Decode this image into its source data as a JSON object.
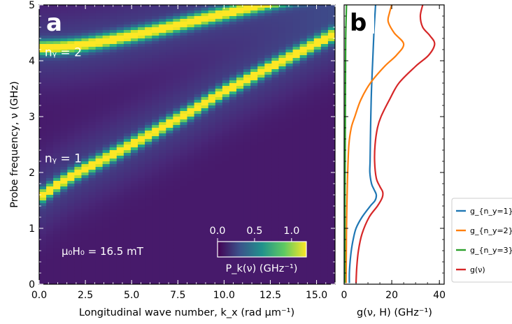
{
  "chart_data": [
    {
      "type": "heatmap",
      "panel_label": "a",
      "xlabel": "Longitudinal wave number, k_x (rad μm⁻¹)",
      "ylabel": "Probe frequency, ν (GHz)",
      "xlim": [
        0,
        16
      ],
      "ylim": [
        0,
        5
      ],
      "x_ticks": [
        "0.0",
        "2.5",
        "5.0",
        "7.5",
        "10.0",
        "12.5",
        "15.0"
      ],
      "y_ticks": [
        "0",
        "1",
        "2",
        "3",
        "4",
        "5"
      ],
      "field_annotation": "μ₀H₀ = 16.5 mT",
      "mode_labels": [
        {
          "text": "nᵧ = 1",
          "x": 0.3,
          "y": 2.18
        },
        {
          "text": "nᵧ = 2",
          "x": 0.3,
          "y": 4.08
        }
      ],
      "colorbar": {
        "label": "P_k(ν) (GHz⁻¹)",
        "ticks": [
          "0.0",
          "0.5",
          "1.0"
        ],
        "range": [
          0,
          1.2
        ],
        "colormap": "viridis"
      },
      "bands": [
        {
          "name": "n_y = 1",
          "kx": [
            0,
            1,
            2,
            3,
            4,
            5,
            6,
            7,
            8,
            9,
            10,
            11,
            12,
            13,
            14,
            15,
            16
          ],
          "nu": [
            1.55,
            1.78,
            1.98,
            2.15,
            2.32,
            2.5,
            2.68,
            2.87,
            3.05,
            3.25,
            3.45,
            3.62,
            3.8,
            3.97,
            4.14,
            4.31,
            4.48
          ]
        },
        {
          "name": "n_y = 2",
          "kx": [
            0,
            1,
            2,
            3,
            4,
            5,
            6,
            7,
            8,
            9,
            10,
            11,
            12,
            13,
            14,
            15,
            16
          ],
          "nu": [
            4.23,
            4.24,
            4.27,
            4.32,
            4.38,
            4.45,
            4.52,
            4.6,
            4.68,
            4.76,
            4.84,
            4.92,
            5.0,
            5.08,
            5.15,
            5.22,
            5.3
          ]
        }
      ]
    },
    {
      "type": "line",
      "panel_label": "b",
      "xlabel": "g(ν, H) (GHz⁻¹)",
      "ylabel": "",
      "xlim": [
        0,
        42
      ],
      "ylim": [
        0,
        5
      ],
      "x_ticks": [
        "0",
        "20",
        "40"
      ],
      "legend_position": "right",
      "colors": {
        "n1": "#1f77b4",
        "n2": "#ff7f0e",
        "n3": "#2ca02c",
        "total": "#d62728"
      },
      "series": [
        {
          "name": "g_{n_y=1}(ν)",
          "color": "#1f77b4",
          "nu": [
            0.02,
            0.2,
            0.4,
            0.6,
            0.8,
            1.0,
            1.2,
            1.4,
            1.5,
            1.6,
            1.7,
            1.8,
            2.0,
            2.2,
            2.5,
            3.0,
            3.5,
            4.0,
            4.5,
            5.0
          ],
          "g": [
            2.2,
            2.2,
            2.5,
            3.0,
            3.8,
            5.0,
            7.5,
            11.0,
            13.0,
            13.5,
            12.5,
            11.5,
            10.8,
            10.9,
            11.0,
            11.2,
            11.5,
            12.0,
            12.5,
            13.2
          ]
        },
        {
          "name": "g_{n_y=2}(ν)",
          "color": "#ff7f0e",
          "nu": [
            0.02,
            0.5,
            1.0,
            1.5,
            2.0,
            2.5,
            2.8,
            3.0,
            3.3,
            3.6,
            3.9,
            4.1,
            4.3,
            4.5,
            4.7,
            4.85,
            5.0
          ],
          "g": [
            0.8,
            0.9,
            1.0,
            1.2,
            1.5,
            2.0,
            3.0,
            4.5,
            7.0,
            11.0,
            17.0,
            22.0,
            25.0,
            21.0,
            18.5,
            19.0,
            20.0
          ]
        },
        {
          "name": "g_{n_y=3}(ν)",
          "color": "#2ca02c",
          "nu": [
            0.02,
            1.0,
            2.0,
            3.0,
            4.0,
            4.5,
            5.0
          ],
          "g": [
            0.3,
            0.3,
            0.4,
            0.5,
            0.6,
            0.7,
            1.0
          ]
        },
        {
          "name": "g(ν)",
          "color": "#d62728",
          "nu": [
            0.02,
            0.3,
            0.6,
            0.9,
            1.2,
            1.4,
            1.55,
            1.65,
            1.75,
            1.9,
            2.2,
            2.5,
            2.8,
            3.0,
            3.3,
            3.6,
            3.9,
            4.1,
            4.3,
            4.45,
            4.6,
            4.8,
            5.0
          ],
          "g": [
            5.0,
            5.3,
            6.0,
            7.5,
            10.5,
            14.0,
            16.0,
            16.2,
            15.0,
            13.5,
            12.8,
            13.0,
            14.0,
            15.5,
            19.0,
            23.0,
            30.0,
            35.5,
            38.0,
            36.0,
            33.0,
            32.0,
            33.0
          ]
        }
      ]
    }
  ]
}
